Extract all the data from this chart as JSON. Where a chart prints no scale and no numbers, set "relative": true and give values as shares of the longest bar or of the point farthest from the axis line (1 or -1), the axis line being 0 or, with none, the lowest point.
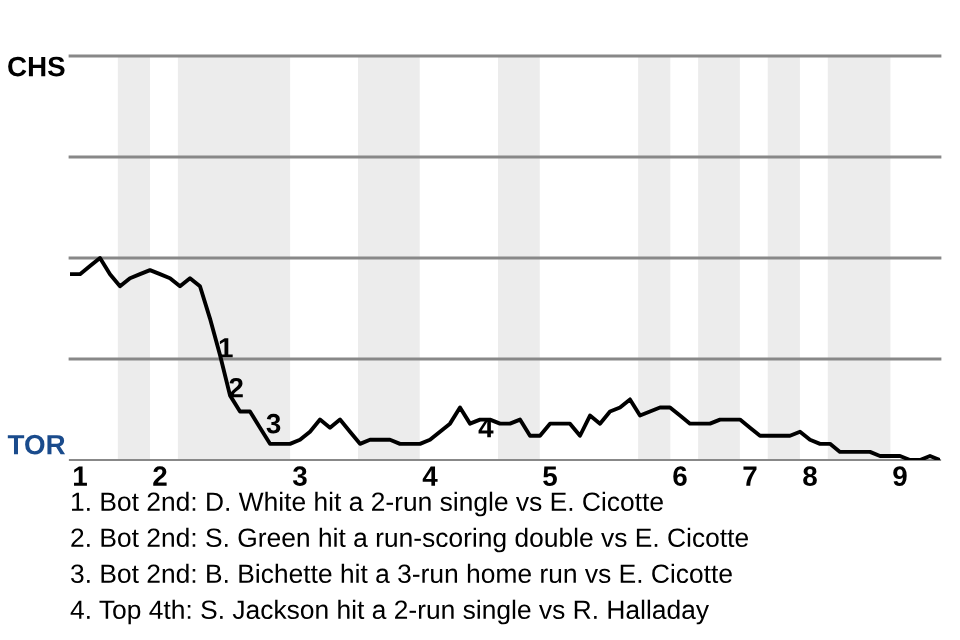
{
  "chart_data": {
    "type": "line",
    "relative": true,
    "categories": [
      null,
      "1",
      null,
      null,
      null,
      null,
      null,
      null,
      null,
      "2",
      null,
      null,
      null,
      null,
      null,
      null,
      null,
      null,
      null,
      null,
      null,
      null,
      null,
      "3",
      null,
      null,
      null,
      null,
      null,
      null,
      null,
      null,
      null,
      null,
      null,
      null,
      "4",
      null,
      null,
      null,
      null,
      null,
      null,
      null,
      null,
      null,
      null,
      null,
      "5",
      null,
      null,
      null,
      null,
      null,
      null,
      null,
      null,
      null,
      null,
      null,
      null,
      "6",
      null,
      null,
      null,
      null,
      null,
      null,
      "7",
      null,
      null,
      null,
      null,
      null,
      "8",
      null,
      null,
      null,
      null,
      null,
      null,
      null,
      null,
      "9",
      null,
      null,
      null,
      null
    ],
    "series": [
      {
        "color": "#000000",
        "values": [
          0.92,
          0.92,
          0.96,
          1,
          0.92,
          0.86,
          0.9,
          0.92,
          0.94,
          0.92,
          0.9,
          0.86,
          0.9,
          0.86,
          0.7,
          0.52,
          0.32,
          0.24,
          0.24,
          0.16,
          0.08,
          0.08,
          0.08,
          0.1,
          0.14,
          0.2,
          0.16,
          0.2,
          0.14,
          0.08,
          0.1,
          0.1,
          0.1,
          0.08,
          0.08,
          0.08,
          0.1,
          0.14,
          0.18,
          0.26,
          0.18,
          0.2,
          0.2,
          0.18,
          0.18,
          0.2,
          0.12,
          0.12,
          0.18,
          0.18,
          0.18,
          0.12,
          0.22,
          0.18,
          0.24,
          0.26,
          0.3,
          0.22,
          0.24,
          0.26,
          0.26,
          0.22,
          0.18,
          0.18,
          0.18,
          0.2,
          0.2,
          0.2,
          0.16,
          0.12,
          0.12,
          0.12,
          0.12,
          0.14,
          0.1,
          0.08,
          0.08,
          0.04,
          0.04,
          0.04,
          0.04,
          0.02,
          0.02,
          0.02,
          0,
          0,
          0.02,
          0
        ]
      }
    ],
    "ref_lines": [
      {
        "axis": "y",
        "value": 0.5,
        "color": "#888888"
      },
      {
        "axis": "y",
        "value": 1,
        "color": "#888888"
      },
      {
        "axis": "y",
        "value": 1.5,
        "color": "#888888"
      },
      {
        "axis": "y",
        "value": 2,
        "color": "#888888"
      }
    ],
    "annotations": [
      "CHS",
      "TOR",
      "1",
      "2",
      "3",
      "4",
      "1. Bot 2nd: D. White hit a 2-run single vs E. Cicotte",
      "2. Bot 2nd: S. Green hit a run-scoring double vs E. Cicotte",
      "3. Bot 2nd: B. Bichette hit a 3-run home run vs E. Cicotte",
      "4. Top 4th: S. Jackson hit a 2-run single vs R. Halladay"
    ]
  }
}
